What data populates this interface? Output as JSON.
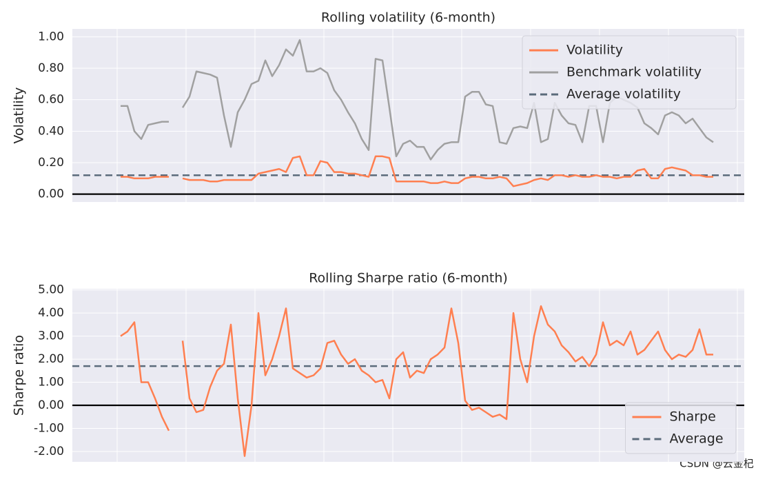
{
  "chart_data": [
    {
      "type": "line",
      "title": "Rolling volatility (6-month)",
      "ylabel": "Volatility",
      "x": [
        0,
        1,
        2,
        3,
        4,
        5,
        6,
        7,
        8,
        9,
        10,
        11,
        12,
        13,
        14,
        15,
        16,
        17,
        18,
        19,
        20,
        21,
        22,
        23,
        24,
        25,
        26,
        27,
        28,
        29,
        30,
        31,
        32,
        33,
        34,
        35,
        36,
        37,
        38,
        39,
        40,
        41,
        42,
        43,
        44,
        45,
        46,
        47,
        48,
        49,
        50,
        51,
        52,
        53,
        54,
        55,
        56,
        57,
        58,
        59,
        60,
        61,
        62,
        63,
        64,
        65,
        66,
        67,
        68,
        69,
        70,
        71,
        72,
        73,
        74,
        75,
        76,
        77,
        78,
        79,
        80,
        81,
        82,
        83,
        84,
        85,
        86
      ],
      "xlim": [
        -7,
        90.5
      ],
      "ylim": [
        -0.05,
        1.05
      ],
      "yticks": [
        {
          "value": 0,
          "label": "0.00"
        },
        {
          "value": 0.2,
          "label": "0.20"
        },
        {
          "value": 0.4,
          "label": "0.40"
        },
        {
          "value": 0.6,
          "label": "0.60"
        },
        {
          "value": 0.8,
          "label": "0.80"
        },
        {
          "value": 1,
          "label": "1.00"
        }
      ],
      "grid": true,
      "legend": "upper right",
      "baseline": 0,
      "series": [
        {
          "name": "Volatility",
          "color": "#ff7f50",
          "values": [
            0.11,
            0.11,
            0.1,
            0.1,
            0.1,
            0.11,
            0.11,
            0.11,
            null,
            0.1,
            0.09,
            0.09,
            0.09,
            0.08,
            0.08,
            0.09,
            0.09,
            0.09,
            0.09,
            0.09,
            0.13,
            0.14,
            0.15,
            0.16,
            0.14,
            0.23,
            0.24,
            0.12,
            0.12,
            0.21,
            0.2,
            0.14,
            0.14,
            0.13,
            0.13,
            0.12,
            0.11,
            0.24,
            0.24,
            0.23,
            0.08,
            0.08,
            0.08,
            0.08,
            0.08,
            0.07,
            0.07,
            0.08,
            0.07,
            0.07,
            0.1,
            0.11,
            0.11,
            0.1,
            0.1,
            0.11,
            0.1,
            0.05,
            0.06,
            0.07,
            0.09,
            0.1,
            0.09,
            0.12,
            0.12,
            0.11,
            0.12,
            0.11,
            0.11,
            0.12,
            0.11,
            0.11,
            0.1,
            0.11,
            0.11,
            0.15,
            0.16,
            0.1,
            0.1,
            0.16,
            0.17,
            0.16,
            0.15,
            0.12,
            0.12,
            0.11,
            0.11
          ]
        },
        {
          "name": "Benchmark volatility",
          "color": "#a0a0a0",
          "values": [
            0.56,
            0.56,
            0.4,
            0.35,
            0.44,
            0.45,
            0.46,
            0.46,
            null,
            0.55,
            0.62,
            0.78,
            0.77,
            0.76,
            0.74,
            0.5,
            0.3,
            0.52,
            0.6,
            0.7,
            0.72,
            0.85,
            0.75,
            0.82,
            0.92,
            0.88,
            0.98,
            0.78,
            0.78,
            0.8,
            0.77,
            0.66,
            0.6,
            0.52,
            0.45,
            0.35,
            0.28,
            0.86,
            0.85,
            0.55,
            0.24,
            0.32,
            0.34,
            0.3,
            0.3,
            0.22,
            0.28,
            0.32,
            0.33,
            0.33,
            0.62,
            0.65,
            0.65,
            0.57,
            0.56,
            0.33,
            0.32,
            0.42,
            0.43,
            0.42,
            0.58,
            0.33,
            0.35,
            0.58,
            0.5,
            0.45,
            0.44,
            0.33,
            0.56,
            0.56,
            0.33,
            0.58,
            0.62,
            0.6,
            0.58,
            0.55,
            0.45,
            0.42,
            0.38,
            0.5,
            0.52,
            0.5,
            0.45,
            0.48,
            0.42,
            0.36,
            0.33
          ]
        }
      ],
      "hlines": [
        {
          "name": "Average volatility",
          "color": "#5b6b7b",
          "value": 0.12
        }
      ]
    },
    {
      "type": "line",
      "title": "Rolling Sharpe ratio (6-month)",
      "ylabel": "Sharpe ratio",
      "x": [
        0,
        1,
        2,
        3,
        4,
        5,
        6,
        7,
        8,
        9,
        10,
        11,
        12,
        13,
        14,
        15,
        16,
        17,
        18,
        19,
        20,
        21,
        22,
        23,
        24,
        25,
        26,
        27,
        28,
        29,
        30,
        31,
        32,
        33,
        34,
        35,
        36,
        37,
        38,
        39,
        40,
        41,
        42,
        43,
        44,
        45,
        46,
        47,
        48,
        49,
        50,
        51,
        52,
        53,
        54,
        55,
        56,
        57,
        58,
        59,
        60,
        61,
        62,
        63,
        64,
        65,
        66,
        67,
        68,
        69,
        70,
        71,
        72,
        73,
        74,
        75,
        76,
        77,
        78,
        79,
        80,
        81,
        82,
        83,
        84,
        85,
        86
      ],
      "xlim": [
        -7,
        90.5
      ],
      "ylim": [
        -2.45,
        5.05
      ],
      "yticks": [
        {
          "value": -2,
          "label": "-2.00"
        },
        {
          "value": -1,
          "label": "-1.00"
        },
        {
          "value": 0,
          "label": "0.00"
        },
        {
          "value": 1,
          "label": "1.00"
        },
        {
          "value": 2,
          "label": "2.00"
        },
        {
          "value": 3,
          "label": "3.00"
        },
        {
          "value": 4,
          "label": "4.00"
        },
        {
          "value": 5,
          "label": "5.00"
        }
      ],
      "grid": true,
      "legend": "lower right",
      "baseline": 0,
      "series": [
        {
          "name": "Sharpe",
          "color": "#ff7f50",
          "values": [
            3.0,
            3.2,
            3.6,
            1.0,
            1.0,
            0.3,
            -0.5,
            -1.1,
            null,
            2.8,
            0.3,
            -0.3,
            -0.2,
            0.8,
            1.5,
            1.8,
            3.5,
            0.3,
            -2.2,
            0.0,
            4.0,
            1.3,
            2.0,
            3.0,
            4.2,
            1.6,
            1.4,
            1.2,
            1.3,
            1.6,
            2.7,
            2.8,
            2.2,
            1.8,
            2.0,
            1.5,
            1.3,
            1.0,
            1.1,
            0.3,
            2.0,
            2.3,
            1.2,
            1.5,
            1.4,
            2.0,
            2.2,
            2.5,
            4.2,
            2.7,
            0.2,
            -0.2,
            -0.1,
            -0.3,
            -0.5,
            -0.4,
            -0.6,
            4.0,
            2.0,
            1.0,
            3.0,
            4.3,
            3.5,
            3.2,
            2.6,
            2.3,
            1.9,
            2.1,
            1.7,
            2.2,
            3.6,
            2.6,
            2.8,
            2.6,
            3.2,
            2.2,
            2.4,
            2.8,
            3.2,
            2.4,
            2.0,
            2.2,
            2.1,
            2.4,
            3.3,
            2.2,
            2.2
          ]
        }
      ],
      "hlines": [
        {
          "name": "Average",
          "color": "#5b6b7b",
          "value": 1.7
        }
      ]
    }
  ],
  "watermark": "CSDN @云金杞"
}
